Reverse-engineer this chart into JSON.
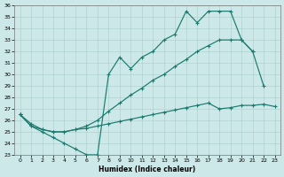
{
  "xlabel": "Humidex (Indice chaleur)",
  "xlim": [
    -0.5,
    23.5
  ],
  "ylim": [
    23,
    36
  ],
  "yticks": [
    23,
    24,
    25,
    26,
    27,
    28,
    29,
    30,
    31,
    32,
    33,
    34,
    35,
    36
  ],
  "xticks": [
    0,
    1,
    2,
    3,
    4,
    5,
    6,
    7,
    8,
    9,
    10,
    11,
    12,
    13,
    14,
    15,
    16,
    17,
    18,
    19,
    20,
    21,
    22,
    23
  ],
  "bg_color": "#cce8e8",
  "grid_color": "#aacccc",
  "line_color": "#1a7a6e",
  "lineA_x": [
    0,
    1,
    2,
    3,
    4,
    5,
    6,
    7,
    8,
    9,
    10,
    11,
    12,
    13,
    14,
    15,
    16,
    17,
    18,
    19,
    20,
    21
  ],
  "lineA_y": [
    26.5,
    25.5,
    25.0,
    24.5,
    24.0,
    23.5,
    23.0,
    23.0,
    30.0,
    31.5,
    30.5,
    31.5,
    32.0,
    33.0,
    33.5,
    35.5,
    34.5,
    35.5,
    35.5,
    35.5,
    33.0,
    32.0
  ],
  "lineB_x": [
    0,
    1,
    2,
    3,
    4,
    5,
    6,
    7,
    8,
    9,
    10,
    11,
    12,
    13,
    14,
    15,
    16,
    17,
    18,
    19,
    20,
    21,
    22
  ],
  "lineB_y": [
    26.5,
    25.5,
    25.2,
    25.0,
    25.0,
    25.2,
    25.5,
    26.0,
    26.8,
    27.5,
    28.2,
    28.8,
    29.5,
    30.0,
    30.7,
    31.3,
    32.0,
    32.5,
    33.0,
    33.0,
    33.0,
    32.0,
    29.0
  ],
  "lineC_x": [
    0,
    1,
    2,
    3,
    4,
    5,
    6,
    7,
    8,
    9,
    10,
    11,
    12,
    13,
    14,
    15,
    16,
    17,
    18,
    19,
    20,
    21,
    22,
    23
  ],
  "lineC_y": [
    26.5,
    25.7,
    25.2,
    25.0,
    25.0,
    25.2,
    25.3,
    25.5,
    25.7,
    25.9,
    26.1,
    26.3,
    26.5,
    26.7,
    26.9,
    27.1,
    27.3,
    27.5,
    27.0,
    27.1,
    27.3,
    27.3,
    27.4,
    27.2
  ]
}
